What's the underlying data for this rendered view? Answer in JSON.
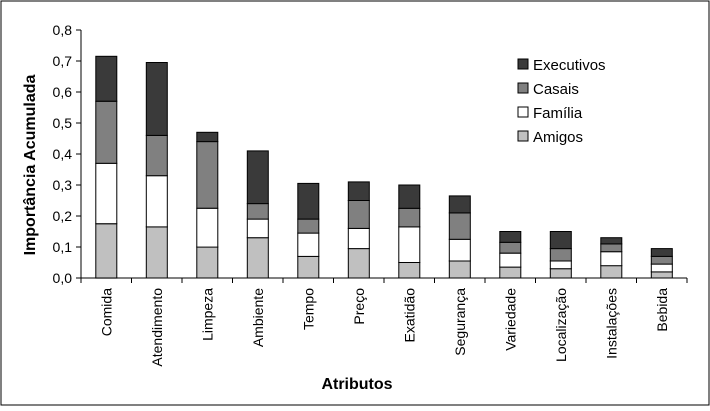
{
  "colors": {
    "Executivos": "#3a3a3a",
    "Casais": "#808080",
    "Família": "#ffffff",
    "Amigos": "#c0c0c0",
    "frame": "#000000"
  },
  "chart_data": {
    "type": "bar",
    "stacked": true,
    "xlabel": "Atributos",
    "ylabel": "Importância Acumulada",
    "ylim": [
      0,
      0.8
    ],
    "ytick_step": 0.1,
    "yticks": [
      "0,0",
      "0,1",
      "0,2",
      "0,3",
      "0,4",
      "0,5",
      "0,6",
      "0,7",
      "0,8"
    ],
    "grid": false,
    "legend_position": "top-right",
    "legend_order": [
      "Executivos",
      "Casais",
      "Família",
      "Amigos"
    ],
    "categories": [
      "Comida",
      "Atendimento",
      "Limpeza",
      "Ambiente",
      "Tempo",
      "Preço",
      "Exatidão",
      "Segurança",
      "Variedade",
      "Localização",
      "Instalações",
      "Bebida"
    ],
    "series": [
      {
        "name": "Amigos",
        "values": [
          0.175,
          0.165,
          0.1,
          0.13,
          0.07,
          0.095,
          0.05,
          0.055,
          0.035,
          0.03,
          0.04,
          0.02
        ]
      },
      {
        "name": "Família",
        "values": [
          0.195,
          0.165,
          0.125,
          0.06,
          0.075,
          0.065,
          0.115,
          0.07,
          0.045,
          0.025,
          0.045,
          0.025
        ]
      },
      {
        "name": "Casais",
        "values": [
          0.2,
          0.13,
          0.215,
          0.05,
          0.045,
          0.09,
          0.06,
          0.085,
          0.035,
          0.04,
          0.025,
          0.025
        ]
      },
      {
        "name": "Executivos",
        "values": [
          0.145,
          0.235,
          0.03,
          0.17,
          0.115,
          0.06,
          0.075,
          0.055,
          0.035,
          0.055,
          0.02,
          0.025
        ]
      }
    ]
  }
}
